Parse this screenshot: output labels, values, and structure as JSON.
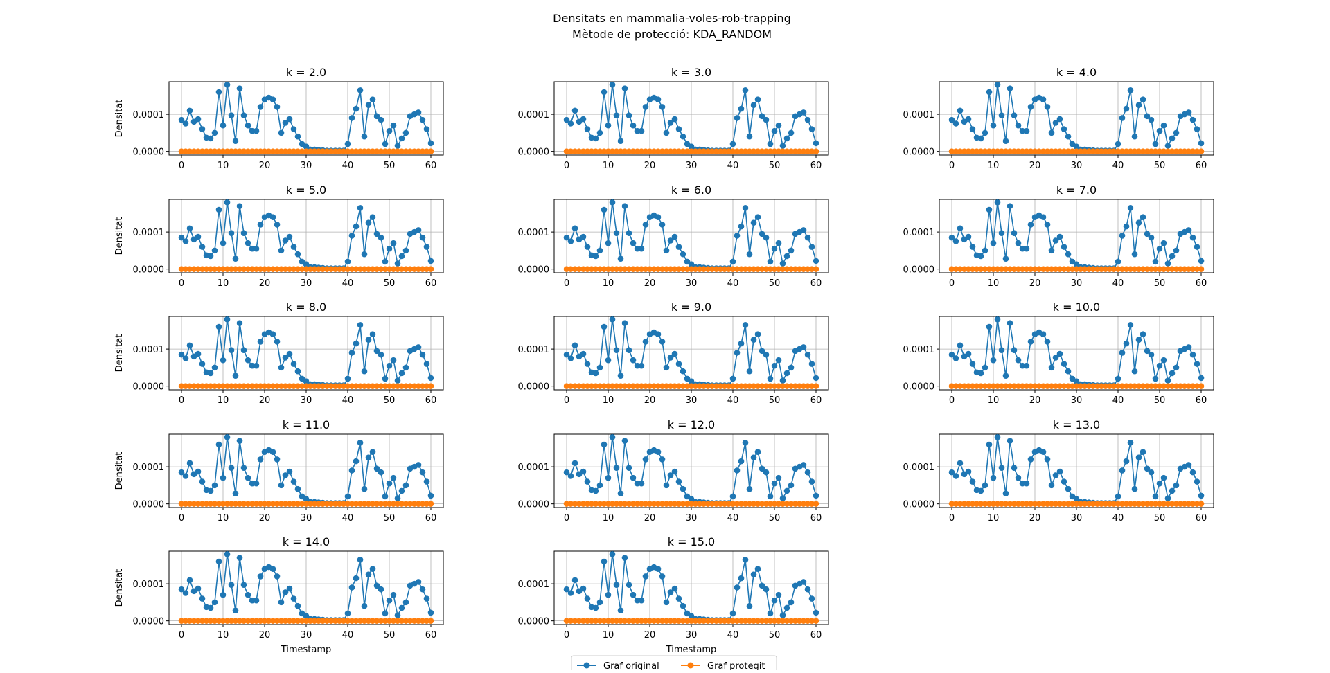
{
  "figure": {
    "title_line1": "Densitats en mammalia-voles-rob-trapping",
    "title_line2": "Mètode de protecció: KDA_RANDOM"
  },
  "colors": {
    "original": "#1f77b4",
    "protected": "#ff7f0e",
    "grid": "#b0b0b0",
    "axes": "#000000"
  },
  "chart_data": {
    "type": "line",
    "x": [
      0,
      1,
      2,
      3,
      4,
      5,
      6,
      7,
      8,
      9,
      10,
      11,
      12,
      13,
      14,
      15,
      16,
      17,
      18,
      19,
      20,
      21,
      22,
      23,
      24,
      25,
      26,
      27,
      28,
      29,
      30,
      31,
      32,
      33,
      34,
      35,
      36,
      37,
      38,
      39,
      40,
      41,
      42,
      43,
      44,
      45,
      46,
      47,
      48,
      49,
      50,
      51,
      52,
      53,
      54,
      55,
      56,
      57,
      58,
      59,
      60
    ],
    "series": [
      {
        "name": "Graf original",
        "values": [
          8.5e-05,
          7.5e-05,
          0.00011,
          8e-05,
          8.7e-05,
          6e-05,
          3.7e-05,
          3.5e-05,
          5e-05,
          0.00016,
          7e-05,
          0.00018,
          9.7e-05,
          2.8e-05,
          0.00017,
          9.7e-05,
          7e-05,
          5.5e-05,
          5.5e-05,
          0.00012,
          0.00014,
          0.000145,
          0.00014,
          0.00012,
          5e-05,
          7.7e-05,
          8.7e-05,
          6e-05,
          4e-05,
          2e-05,
          1.3e-05,
          5e-06,
          5e-06,
          4e-06,
          3e-06,
          2e-06,
          2e-06,
          2e-06,
          2e-06,
          2e-06,
          2e-05,
          9e-05,
          0.000115,
          0.000165,
          4e-05,
          0.000125,
          0.00014,
          9.5e-05,
          8.5e-05,
          2e-05,
          5.5e-05,
          7e-05,
          1.5e-05,
          3.5e-05,
          5e-05,
          9.5e-05,
          0.0001,
          0.000105,
          8.5e-05,
          6e-05,
          2.2e-05
        ]
      },
      {
        "name": "Graf protegit",
        "values": [
          0,
          0,
          0,
          0,
          0,
          0,
          0,
          0,
          0,
          0,
          0,
          0,
          0,
          0,
          0,
          0,
          0,
          0,
          0,
          0,
          0,
          0,
          0,
          0,
          0,
          0,
          0,
          0,
          0,
          0,
          0,
          0,
          0,
          0,
          0,
          0,
          0,
          0,
          0,
          0,
          0,
          0,
          0,
          0,
          0,
          0,
          0,
          0,
          0,
          0,
          0,
          0,
          0,
          0,
          0,
          0,
          0,
          0,
          0,
          0,
          0
        ]
      }
    ],
    "xlim": [
      -3,
      63
    ],
    "ylim": [
      -1e-05,
      0.000188
    ],
    "xticks": [
      0,
      10,
      20,
      30,
      40,
      50,
      60
    ],
    "yticks": [
      0,
      0.0001
    ],
    "ytick_labels": [
      "0.0000",
      "0.0001"
    ],
    "grid": true,
    "legend_placement": "bottom-center",
    "subplots": [
      {
        "title": "k = 2.0"
      },
      {
        "title": "k = 3.0"
      },
      {
        "title": "k = 4.0"
      },
      {
        "title": "k = 5.0"
      },
      {
        "title": "k = 6.0"
      },
      {
        "title": "k = 7.0"
      },
      {
        "title": "k = 8.0"
      },
      {
        "title": "k = 9.0"
      },
      {
        "title": "k = 10.0"
      },
      {
        "title": "k = 11.0"
      },
      {
        "title": "k = 12.0"
      },
      {
        "title": "k = 13.0"
      },
      {
        "title": "k = 14.0"
      },
      {
        "title": "k = 15.0"
      }
    ],
    "ylabel": "Densitat",
    "xlabel": "Timestamp"
  },
  "legend": {
    "items": [
      {
        "label": "Graf original"
      },
      {
        "label": "Graf protegit"
      }
    ]
  }
}
